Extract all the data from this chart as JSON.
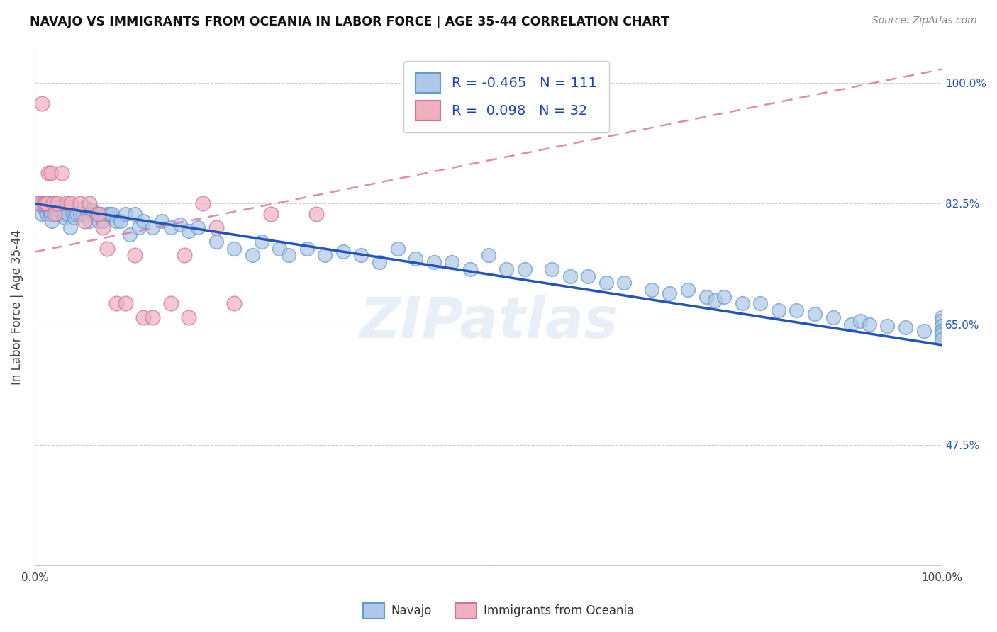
{
  "title": "NAVAJO VS IMMIGRANTS FROM OCEANIA IN LABOR FORCE | AGE 35-44 CORRELATION CHART",
  "source": "Source: ZipAtlas.com",
  "ylabel": "In Labor Force | Age 35-44",
  "ytick_labels": [
    "100.0%",
    "82.5%",
    "65.0%",
    "47.5%"
  ],
  "ytick_values": [
    1.0,
    0.825,
    0.65,
    0.475
  ],
  "xlim": [
    0.0,
    1.0
  ],
  "ylim": [
    0.3,
    1.05
  ],
  "R_navajo": -0.465,
  "N_navajo": 111,
  "R_oceania": 0.098,
  "N_oceania": 32,
  "navajo_color": "#adc8e8",
  "navajo_edge_color": "#6699cc",
  "oceania_color": "#f0b0c0",
  "oceania_edge_color": "#cc7799",
  "navajo_line_color": "#2255bb",
  "oceania_line_color": "#dd7799",
  "watermark": "ZIPatlas",
  "legend_navajo": "Navajo",
  "legend_oceania": "Immigrants from Oceania",
  "navajo_trend_x0": 0.0,
  "navajo_trend_y0": 0.825,
  "navajo_trend_x1": 1.0,
  "navajo_trend_y1": 0.62,
  "oceania_trend_x0": 0.0,
  "oceania_trend_y0": 0.755,
  "oceania_trend_x1": 1.0,
  "oceania_trend_y1": 1.02,
  "navajo_x": [
    0.005,
    0.007,
    0.008,
    0.01,
    0.011,
    0.012,
    0.013,
    0.014,
    0.015,
    0.016,
    0.017,
    0.018,
    0.019,
    0.02,
    0.021,
    0.022,
    0.023,
    0.025,
    0.026,
    0.027,
    0.028,
    0.03,
    0.031,
    0.032,
    0.033,
    0.035,
    0.037,
    0.039,
    0.04,
    0.042,
    0.044,
    0.046,
    0.05,
    0.053,
    0.055,
    0.058,
    0.06,
    0.063,
    0.065,
    0.068,
    0.07,
    0.073,
    0.075,
    0.08,
    0.083,
    0.085,
    0.09,
    0.095,
    0.1,
    0.105,
    0.11,
    0.115,
    0.12,
    0.13,
    0.14,
    0.15,
    0.16,
    0.17,
    0.18,
    0.2,
    0.22,
    0.24,
    0.25,
    0.27,
    0.28,
    0.3,
    0.32,
    0.34,
    0.36,
    0.38,
    0.4,
    0.42,
    0.44,
    0.46,
    0.48,
    0.5,
    0.52,
    0.54,
    0.57,
    0.59,
    0.61,
    0.63,
    0.65,
    0.68,
    0.7,
    0.72,
    0.74,
    0.75,
    0.76,
    0.78,
    0.8,
    0.82,
    0.84,
    0.86,
    0.88,
    0.9,
    0.91,
    0.92,
    0.94,
    0.96,
    0.98,
    1.0,
    1.0,
    1.0,
    1.0,
    1.0,
    1.0,
    1.0,
    1.0,
    1.0,
    1.0
  ],
  "navajo_y": [
    0.825,
    0.825,
    0.81,
    0.825,
    0.82,
    0.815,
    0.81,
    0.82,
    0.825,
    0.815,
    0.81,
    0.81,
    0.8,
    0.825,
    0.82,
    0.815,
    0.81,
    0.81,
    0.82,
    0.815,
    0.82,
    0.82,
    0.815,
    0.81,
    0.805,
    0.82,
    0.81,
    0.79,
    0.82,
    0.81,
    0.805,
    0.81,
    0.81,
    0.81,
    0.82,
    0.81,
    0.8,
    0.815,
    0.81,
    0.81,
    0.8,
    0.81,
    0.8,
    0.81,
    0.81,
    0.81,
    0.8,
    0.8,
    0.81,
    0.78,
    0.81,
    0.79,
    0.8,
    0.79,
    0.8,
    0.79,
    0.795,
    0.785,
    0.79,
    0.77,
    0.76,
    0.75,
    0.77,
    0.76,
    0.75,
    0.76,
    0.75,
    0.755,
    0.75,
    0.74,
    0.76,
    0.745,
    0.74,
    0.74,
    0.73,
    0.75,
    0.73,
    0.73,
    0.73,
    0.72,
    0.72,
    0.71,
    0.71,
    0.7,
    0.695,
    0.7,
    0.69,
    0.685,
    0.69,
    0.68,
    0.68,
    0.67,
    0.67,
    0.665,
    0.66,
    0.65,
    0.655,
    0.65,
    0.648,
    0.645,
    0.64,
    0.66,
    0.655,
    0.648,
    0.64,
    0.638,
    0.635,
    0.63,
    0.64,
    0.635,
    0.628
  ],
  "oceania_x": [
    0.005,
    0.008,
    0.01,
    0.012,
    0.013,
    0.015,
    0.018,
    0.02,
    0.022,
    0.025,
    0.03,
    0.035,
    0.04,
    0.05,
    0.055,
    0.06,
    0.07,
    0.075,
    0.08,
    0.09,
    0.1,
    0.11,
    0.12,
    0.13,
    0.15,
    0.165,
    0.17,
    0.185,
    0.2,
    0.22,
    0.26,
    0.31
  ],
  "oceania_y": [
    0.825,
    0.97,
    0.825,
    0.825,
    0.825,
    0.87,
    0.87,
    0.825,
    0.81,
    0.825,
    0.87,
    0.825,
    0.825,
    0.825,
    0.8,
    0.825,
    0.81,
    0.79,
    0.76,
    0.68,
    0.68,
    0.75,
    0.66,
    0.66,
    0.68,
    0.75,
    0.66,
    0.825,
    0.79,
    0.68,
    0.81,
    0.81
  ]
}
